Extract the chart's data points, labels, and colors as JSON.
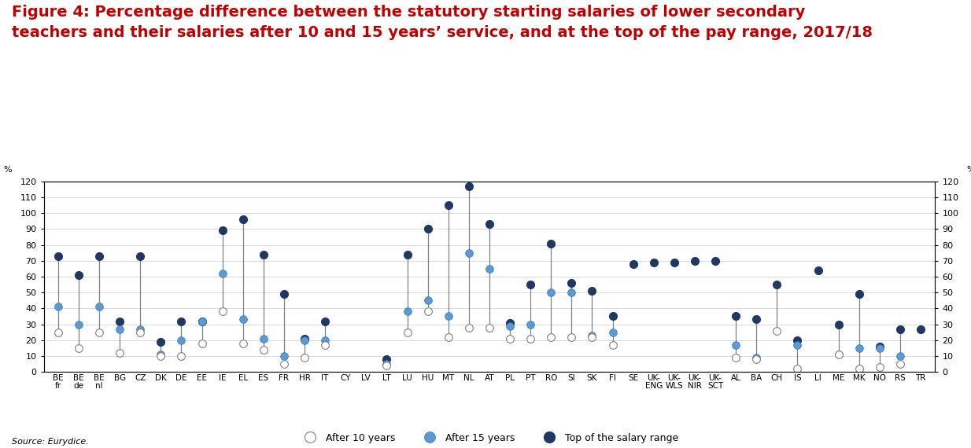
{
  "title_line1": "Figure 4: Percentage difference between the statutory starting salaries of lower secondary",
  "title_line2": "teachers and their salaries after 10 and 15 years’ service, and at the top of the pay range, 2017/18",
  "source": "Source: Eurydice.",
  "categories": [
    "BE\nfr",
    "BE\nde",
    "BE\nnl",
    "BG",
    "CZ",
    "DK",
    "DE",
    "EE",
    "IE",
    "EL",
    "ES",
    "FR",
    "HR",
    "IT",
    "CY",
    "LV",
    "LT",
    "LU",
    "HU",
    "MT",
    "NL",
    "AT",
    "PL",
    "PT",
    "RO",
    "SI",
    "SK",
    "FI",
    "SE",
    "UK-\nENG",
    "UK-\nWLS",
    "UK-\nNIR",
    "UK-\nSCT",
    "AL",
    "BA",
    "CH",
    "IS",
    "LI",
    "ME",
    "MK",
    "NO",
    "RS",
    "TR"
  ],
  "after10": [
    25,
    15,
    25,
    12,
    25,
    10,
    10,
    18,
    38,
    18,
    14,
    5,
    9,
    17,
    null,
    null,
    4,
    25,
    38,
    22,
    28,
    28,
    21,
    21,
    22,
    22,
    22,
    17,
    null,
    null,
    null,
    null,
    null,
    9,
    8,
    26,
    2,
    null,
    11,
    2,
    3,
    5,
    null
  ],
  "after15": [
    41,
    30,
    41,
    27,
    27,
    11,
    20,
    32,
    62,
    33,
    21,
    10,
    20,
    20,
    null,
    null,
    5,
    38,
    45,
    35,
    75,
    65,
    29,
    30,
    50,
    50,
    23,
    25,
    null,
    null,
    null,
    null,
    null,
    17,
    9,
    null,
    17,
    null,
    11,
    15,
    15,
    10,
    null
  ],
  "top_range": [
    73,
    61,
    73,
    32,
    73,
    19,
    32,
    32,
    89,
    96,
    74,
    49,
    21,
    32,
    null,
    null,
    8,
    74,
    90,
    105,
    117,
    93,
    31,
    55,
    81,
    56,
    51,
    35,
    68,
    69,
    69,
    70,
    70,
    35,
    33,
    55,
    20,
    64,
    30,
    49,
    16,
    27,
    27
  ],
  "color_10": "#ffffff",
  "color_15": "#5b9bd5",
  "color_top": "#1f3864",
  "line_color": "#808080",
  "bg_color": "#ffffff",
  "grid_color": "#d9d9d9",
  "title_color": "#c00000",
  "ylim": [
    0,
    120
  ],
  "yticks": [
    0,
    10,
    20,
    30,
    40,
    50,
    60,
    70,
    80,
    90,
    100,
    110,
    120
  ],
  "title_fontsize": 14,
  "tick_fontsize": 7.5,
  "ytick_fontsize": 8,
  "marker_size": 7,
  "legend_fontsize": 9
}
